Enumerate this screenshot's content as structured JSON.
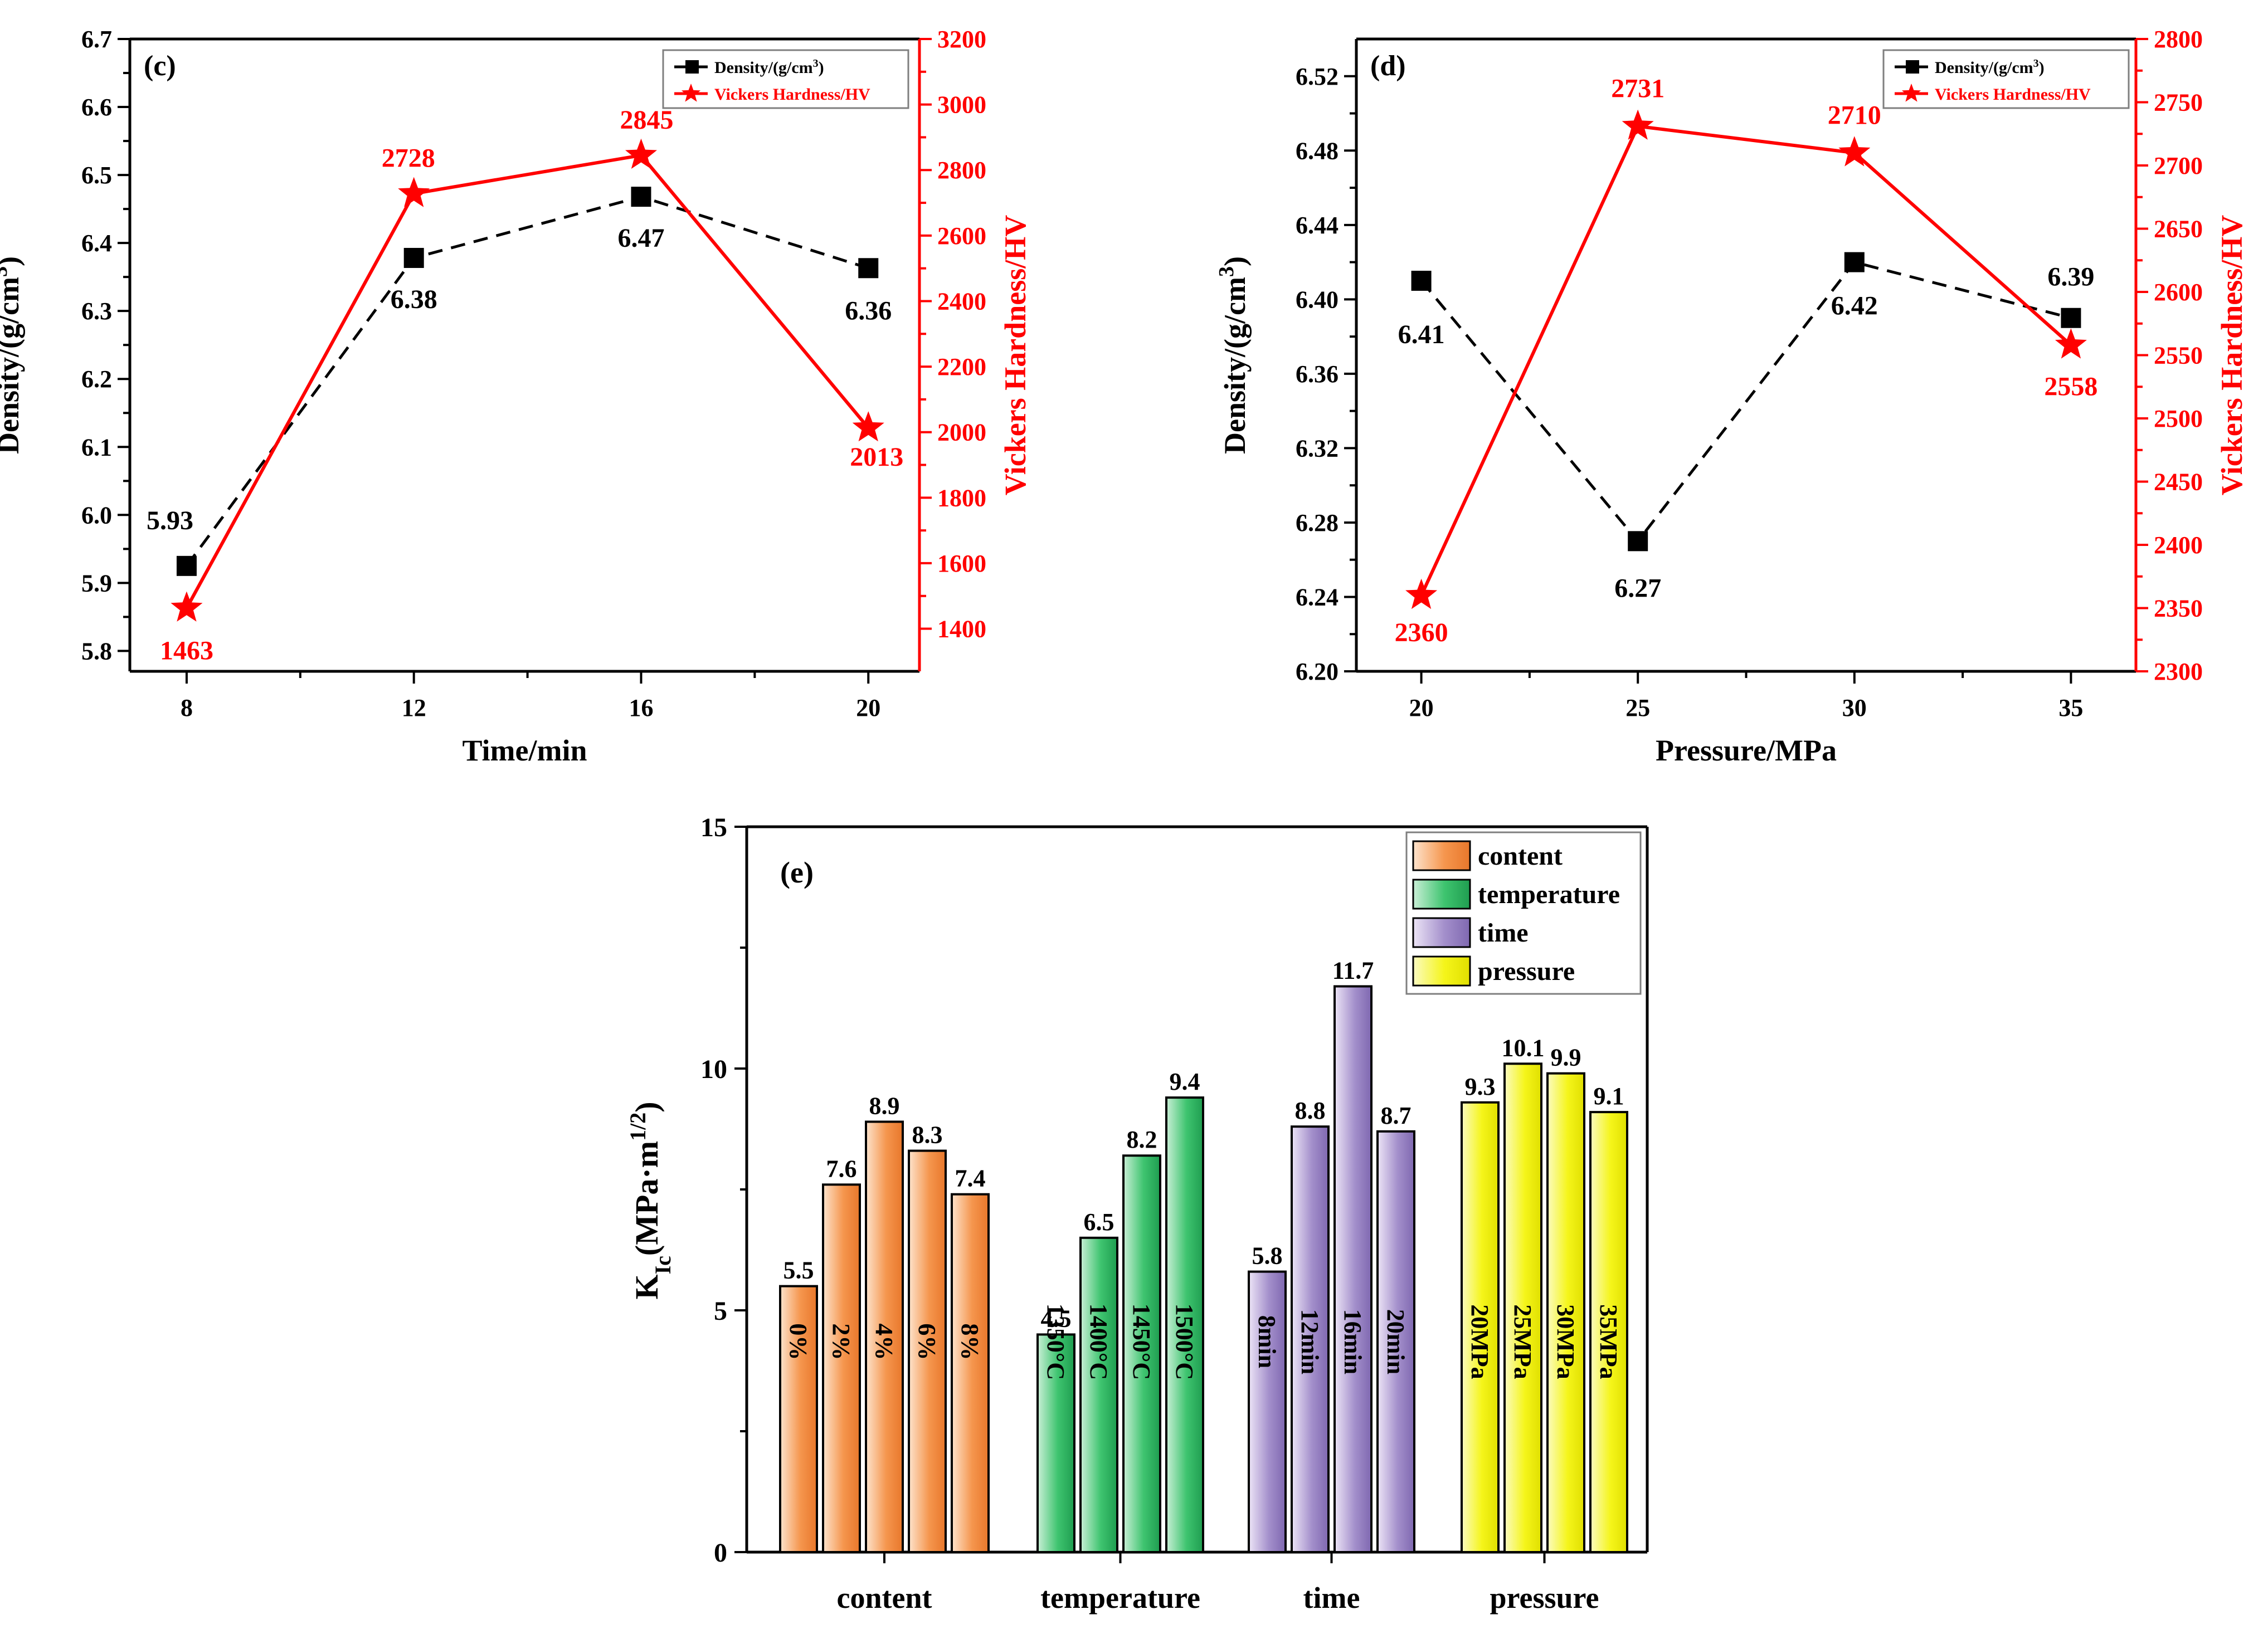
{
  "chart_data": [
    {
      "id": "c",
      "type": "line",
      "panel_label": "(c)",
      "xlabel": "Time/min",
      "ylabel": "Density/(g/cm",
      "ylabel_sup": "3",
      "ylabel_close": ")",
      "y2label": "Vickers Hardness/HV",
      "x": [
        8,
        12,
        16,
        20
      ],
      "xlim": [
        7,
        20.9
      ],
      "ylim": [
        5.77,
        6.7
      ],
      "y2lim": [
        1270,
        3200
      ],
      "x_ticks": [
        "8",
        "12",
        "16",
        "20"
      ],
      "y_ticks": [
        "5.8",
        "5.9",
        "6.0",
        "6.1",
        "6.2",
        "6.3",
        "6.4",
        "6.5",
        "6.6",
        "6.7"
      ],
      "y2_ticks": [
        "1400",
        "1600",
        "1800",
        "2000",
        "2200",
        "2400",
        "2600",
        "2800",
        "3000",
        "3200"
      ],
      "series": [
        {
          "name": "Density/(g/cm",
          "name_sup": "3",
          "name_close": ")",
          "axis": "left",
          "color": "#000000",
          "style": "dashed",
          "marker": "square",
          "values": [
            5.925,
            6.378,
            6.468,
            6.363
          ],
          "labels": [
            "5.93",
            "6.38",
            "6.47",
            "6.36"
          ]
        },
        {
          "name": "Vickers Hardness/HV",
          "axis": "right",
          "color": "#ff0000",
          "style": "solid",
          "marker": "star",
          "values": [
            1463,
            2728,
            2845,
            2013
          ],
          "labels": [
            "1463",
            "2728",
            "2845",
            "2013"
          ]
        }
      ]
    },
    {
      "id": "d",
      "type": "line",
      "panel_label": "(d)",
      "xlabel": "Pressure/MPa",
      "ylabel": "Density/(g/cm",
      "ylabel_sup": "3",
      "ylabel_close": ")",
      "y2label": "Vickers Hardness/HV",
      "x": [
        20,
        25,
        30,
        35
      ],
      "xlim": [
        18.5,
        36.5
      ],
      "ylim": [
        6.2,
        6.54
      ],
      "y2lim": [
        2300,
        2800
      ],
      "x_ticks": [
        "20",
        "25",
        "30",
        "35"
      ],
      "y_ticks": [
        "6.20",
        "6.24",
        "6.28",
        "6.32",
        "6.36",
        "6.40",
        "6.44",
        "6.48",
        "6.52"
      ],
      "y2_ticks": [
        "2300",
        "2350",
        "2400",
        "2450",
        "2500",
        "2550",
        "2600",
        "2650",
        "2700",
        "2750",
        "2800"
      ],
      "series": [
        {
          "name": "Density/(g/cm",
          "name_sup": "3",
          "name_close": ")",
          "axis": "left",
          "color": "#000000",
          "style": "dashed",
          "marker": "square",
          "values": [
            6.41,
            6.27,
            6.42,
            6.39
          ],
          "labels": [
            "6.41",
            "6.27",
            "6.42",
            "6.39"
          ]
        },
        {
          "name": "Vickers Hardness/HV",
          "axis": "right",
          "color": "#ff0000",
          "style": "solid",
          "marker": "star",
          "values": [
            2360,
            2731,
            2710,
            2558
          ],
          "labels": [
            "2360",
            "2731",
            "2710",
            "2558"
          ]
        }
      ]
    },
    {
      "id": "e",
      "type": "bar",
      "panel_label": "(e)",
      "ylabel_main": "K",
      "ylabel_sub": "Ic",
      "ylabel_rest": "(MPa·m",
      "ylabel_sup": "1/2",
      "ylabel_close": ")",
      "ylim": [
        0,
        15
      ],
      "y_ticks": [
        "0",
        "5",
        "10",
        "15"
      ],
      "categories": [
        "content",
        "temperature",
        "time",
        "pressure"
      ],
      "groups": [
        {
          "name": "content",
          "color": "#f5964e",
          "bars": [
            {
              "label": "0%",
              "value": 5.5,
              "value_label": "5.5"
            },
            {
              "label": "2%",
              "value": 7.6,
              "value_label": "7.6"
            },
            {
              "label": "4%",
              "value": 8.9,
              "value_label": "8.9"
            },
            {
              "label": "6%",
              "value": 8.3,
              "value_label": "8.3"
            },
            {
              "label": "8%",
              "value": 7.4,
              "value_label": "7.4"
            }
          ]
        },
        {
          "name": "temperature",
          "color": "#2fbf6a",
          "bars": [
            {
              "label": "1350°C",
              "value": 4.5,
              "value_label": "4.5"
            },
            {
              "label": "1400°C",
              "value": 6.5,
              "value_label": "6.5"
            },
            {
              "label": "1450°C",
              "value": 8.2,
              "value_label": "8.2"
            },
            {
              "label": "1500°C",
              "value": 9.4,
              "value_label": "9.4"
            }
          ]
        },
        {
          "name": "time",
          "color": "#9b86c4",
          "bars": [
            {
              "label": "8min",
              "value": 5.8,
              "value_label": "5.8"
            },
            {
              "label": "12min",
              "value": 8.8,
              "value_label": "8.8"
            },
            {
              "label": "16min",
              "value": 11.7,
              "value_label": "11.7"
            },
            {
              "label": "20min",
              "value": 8.7,
              "value_label": "8.7"
            }
          ]
        },
        {
          "name": "pressure",
          "color": "#f2f20e",
          "bars": [
            {
              "label": "20MPa",
              "value": 9.3,
              "value_label": "9.3"
            },
            {
              "label": "25MPa",
              "value": 10.1,
              "value_label": "10.1"
            },
            {
              "label": "30MPa",
              "value": 9.9,
              "value_label": "9.9"
            },
            {
              "label": "35MPa",
              "value": 9.1,
              "value_label": "9.1"
            }
          ]
        }
      ],
      "legend": [
        "content",
        "temperature",
        "time",
        "pressure"
      ]
    }
  ]
}
